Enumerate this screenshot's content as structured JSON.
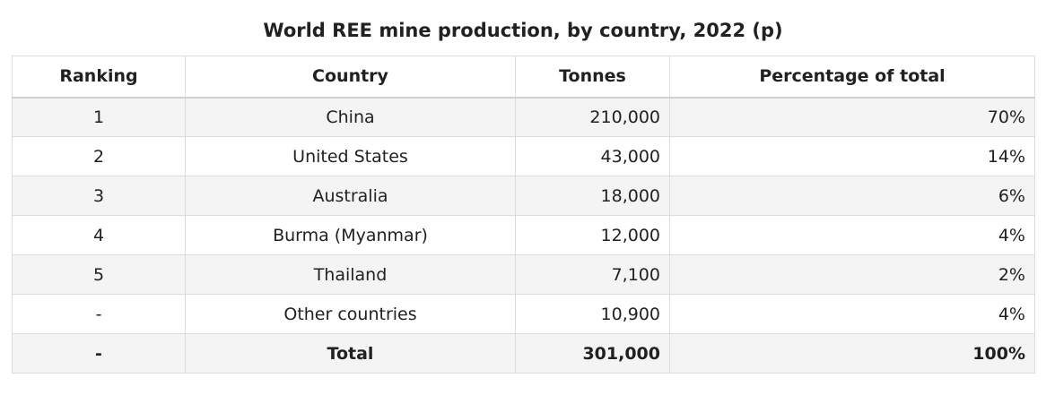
{
  "caption": "World REE mine production, by country, 2022 (p)",
  "headers": {
    "ranking": "Ranking",
    "country": "Country",
    "tonnes": "Tonnes",
    "percentage": "Percentage of total"
  },
  "rows": [
    {
      "ranking": "1",
      "country": "China",
      "tonnes": "210,000",
      "percentage": "70%"
    },
    {
      "ranking": "2",
      "country": "United States",
      "tonnes": "43,000",
      "percentage": "14%"
    },
    {
      "ranking": "3",
      "country": "Australia",
      "tonnes": "18,000",
      "percentage": "6%"
    },
    {
      "ranking": "4",
      "country": "Burma (Myanmar)",
      "tonnes": "12,000",
      "percentage": "4%"
    },
    {
      "ranking": "5",
      "country": "Thailand",
      "tonnes": "7,100",
      "percentage": "2%"
    },
    {
      "ranking": "-",
      "country": "Other countries",
      "tonnes": "10,900",
      "percentage": "4%"
    }
  ],
  "total": {
    "ranking": "-",
    "country": "Total",
    "tonnes": "301,000",
    "percentage": "100%"
  }
}
